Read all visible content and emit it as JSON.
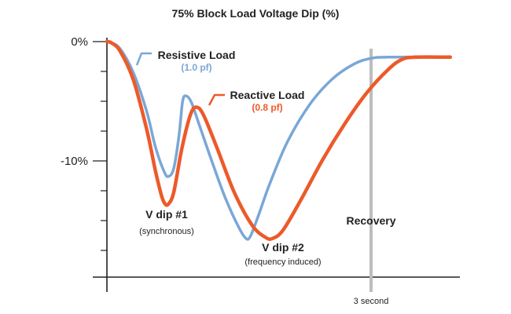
{
  "chart_data": {
    "type": "line",
    "title": "75% Block Load Voltage Dip (%)",
    "xlabel": "",
    "ylabel": "",
    "y_tick_labels": [
      "0%",
      "-10%"
    ],
    "ylim": [
      -20,
      0
    ],
    "xlim": [
      0,
      3.9
    ],
    "x_tick_labels": [
      {
        "x": 3,
        "label": "3 second"
      }
    ],
    "recovery_label": "Recovery",
    "recovery_x": 3.0,
    "grid": false,
    "series": [
      {
        "name": "Resistive Load",
        "sublabel": "(1.0 pf)",
        "color": "#7aa7d6",
        "points": [
          [
            0,
            0
          ],
          [
            0.05,
            -0.1
          ],
          [
            0.15,
            -0.6
          ],
          [
            0.3,
            -2.6
          ],
          [
            0.45,
            -5.8
          ],
          [
            0.55,
            -8.8
          ],
          [
            0.65,
            -10.9
          ],
          [
            0.7,
            -11.3
          ],
          [
            0.76,
            -10.6
          ],
          [
            0.82,
            -7.8
          ],
          [
            0.86,
            -5.0
          ],
          [
            0.9,
            -4.55
          ],
          [
            0.96,
            -5.1
          ],
          [
            1.05,
            -7.0
          ],
          [
            1.2,
            -10.2
          ],
          [
            1.35,
            -13.2
          ],
          [
            1.5,
            -15.6
          ],
          [
            1.58,
            -16.5
          ],
          [
            1.63,
            -16.3
          ],
          [
            1.72,
            -14.6
          ],
          [
            1.85,
            -11.9
          ],
          [
            2.05,
            -8.4
          ],
          [
            2.3,
            -5.3
          ],
          [
            2.55,
            -3.2
          ],
          [
            2.8,
            -1.9
          ],
          [
            3.0,
            -1.4
          ],
          [
            3.2,
            -1.3
          ],
          [
            3.9,
            -1.3
          ]
        ]
      },
      {
        "name": "Reactive Load",
        "sublabel": "(0.8 pf)",
        "color": "#ec5a2a",
        "points": [
          [
            0,
            0
          ],
          [
            0.05,
            -0.1
          ],
          [
            0.15,
            -0.8
          ],
          [
            0.3,
            -3.2
          ],
          [
            0.45,
            -7.3
          ],
          [
            0.55,
            -10.8
          ],
          [
            0.62,
            -12.9
          ],
          [
            0.66,
            -13.6
          ],
          [
            0.7,
            -13.6
          ],
          [
            0.76,
            -12.6
          ],
          [
            0.85,
            -9.0
          ],
          [
            0.95,
            -6.1
          ],
          [
            1.02,
            -5.5
          ],
          [
            1.1,
            -6.2
          ],
          [
            1.25,
            -8.9
          ],
          [
            1.45,
            -12.7
          ],
          [
            1.65,
            -15.4
          ],
          [
            1.8,
            -16.4
          ],
          [
            1.88,
            -16.5
          ],
          [
            2.0,
            -15.8
          ],
          [
            2.2,
            -13.3
          ],
          [
            2.45,
            -9.9
          ],
          [
            2.7,
            -6.9
          ],
          [
            2.95,
            -4.3
          ],
          [
            3.2,
            -2.3
          ],
          [
            3.35,
            -1.5
          ],
          [
            3.5,
            -1.3
          ],
          [
            3.9,
            -1.3
          ]
        ]
      }
    ],
    "annotations": [
      {
        "title": "V dip #1",
        "subtitle": "(synchronous)"
      },
      {
        "title": "V dip #2",
        "subtitle": "(frequency induced)"
      }
    ]
  }
}
